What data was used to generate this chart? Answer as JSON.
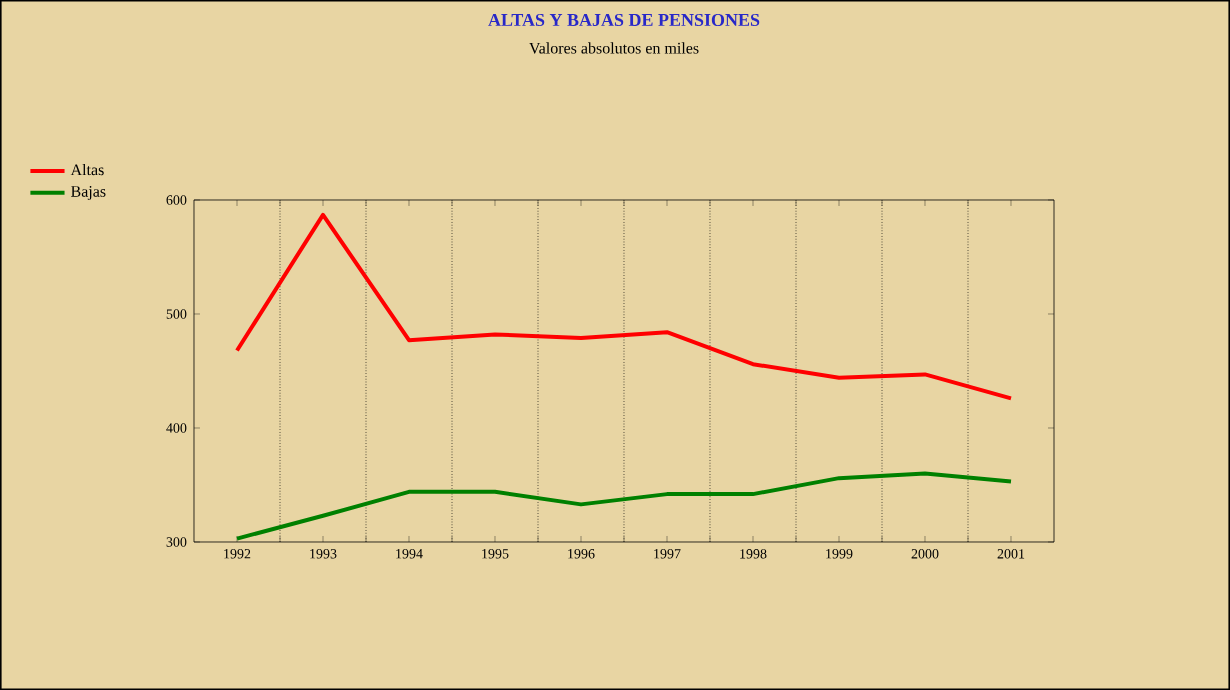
{
  "chart_data": {
    "type": "line",
    "title": "ALTAS Y BAJAS DE PENSIONES",
    "subtitle": "Valores absolutos en miles",
    "categories": [
      "1992",
      "1993",
      "1994",
      "1995",
      "1996",
      "1997",
      "1998",
      "1999",
      "2000",
      "2001"
    ],
    "series": [
      {
        "name": "Altas",
        "color": "#ff0000",
        "values": [
          468,
          587,
          477,
          482,
          479,
          484,
          456,
          444,
          447,
          426
        ]
      },
      {
        "name": "Bajas",
        "color": "#008000",
        "values": [
          303,
          323,
          344,
          344,
          333,
          342,
          342,
          356,
          360,
          353
        ]
      }
    ],
    "ylim": [
      300,
      600
    ],
    "yticks": [
      300,
      400,
      500,
      600
    ],
    "grid": "x",
    "legend": "top left",
    "marker": "none",
    "line_style": "solid"
  }
}
